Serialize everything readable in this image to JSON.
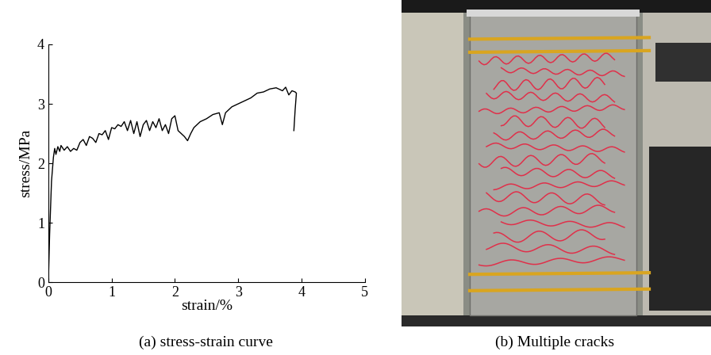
{
  "chart_data": {
    "type": "line",
    "title": "(a) stress-strain curve",
    "x_label": "strain/%",
    "y_label": "stress/MPa",
    "color": "#000000",
    "x": [
      0,
      0.02,
      0.05,
      0.08,
      0.1,
      0.12,
      0.15,
      0.18,
      0.2,
      0.25,
      0.3,
      0.35,
      0.4,
      0.45,
      0.5,
      0.55,
      0.6,
      0.65,
      0.7,
      0.75,
      0.8,
      0.85,
      0.9,
      0.95,
      1.0,
      1.05,
      1.1,
      1.15,
      1.2,
      1.25,
      1.3,
      1.35,
      1.4,
      1.45,
      1.5,
      1.55,
      1.6,
      1.65,
      1.7,
      1.75,
      1.8,
      1.85,
      1.9,
      1.95,
      2.0,
      2.05,
      2.1,
      2.15,
      2.2,
      2.25,
      2.3,
      2.4,
      2.5,
      2.6,
      2.7,
      2.75,
      2.8,
      2.9,
      3.0,
      3.1,
      3.2,
      3.3,
      3.4,
      3.5,
      3.6,
      3.7,
      3.75,
      3.8,
      3.85,
      3.9,
      3.92,
      3.9,
      3.88
    ],
    "values": [
      0,
      0.8,
      1.7,
      2.1,
      2.25,
      2.15,
      2.28,
      2.2,
      2.3,
      2.22,
      2.28,
      2.2,
      2.25,
      2.22,
      2.35,
      2.4,
      2.3,
      2.45,
      2.42,
      2.35,
      2.5,
      2.48,
      2.55,
      2.4,
      2.6,
      2.58,
      2.65,
      2.62,
      2.7,
      2.55,
      2.72,
      2.5,
      2.7,
      2.45,
      2.65,
      2.72,
      2.55,
      2.7,
      2.6,
      2.75,
      2.55,
      2.65,
      2.5,
      2.75,
      2.8,
      2.55,
      2.5,
      2.45,
      2.38,
      2.5,
      2.6,
      2.7,
      2.75,
      2.82,
      2.85,
      2.65,
      2.85,
      2.95,
      3.0,
      3.05,
      3.1,
      3.18,
      3.2,
      3.25,
      3.27,
      3.22,
      3.28,
      3.15,
      3.22,
      3.2,
      3.18,
      2.9,
      2.55
    ],
    "xlim": [
      0,
      5
    ],
    "xticks": [
      0,
      1,
      2,
      3,
      4,
      5
    ],
    "ylim": [
      0,
      4
    ],
    "yticks": [
      0,
      1,
      2,
      3,
      4
    ],
    "grid": false
  },
  "photo": {
    "caption": "(b) Multiple cracks"
  }
}
